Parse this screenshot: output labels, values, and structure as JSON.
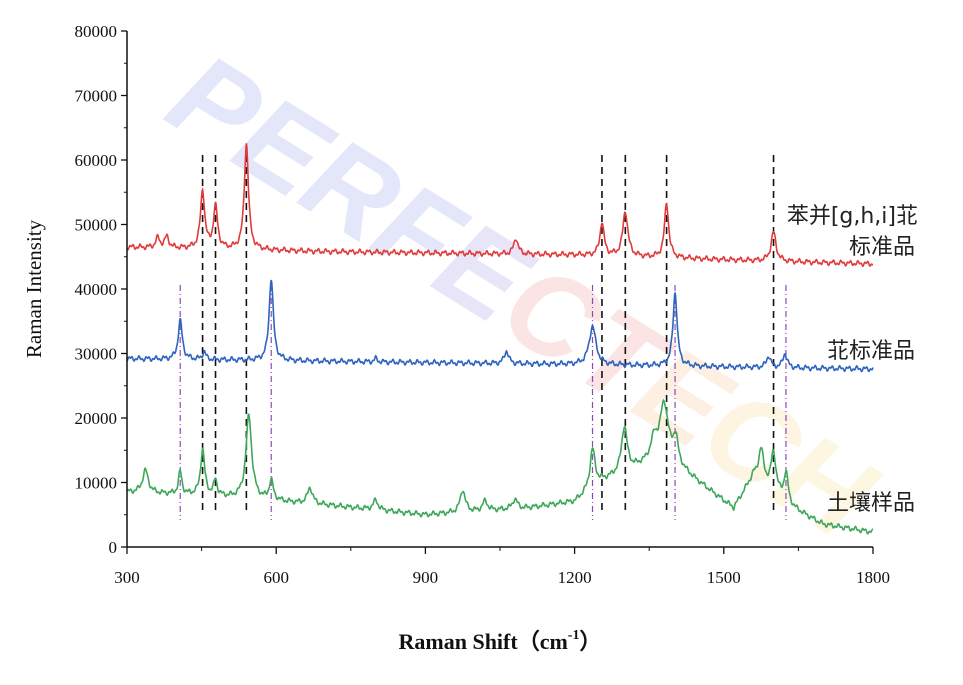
{
  "chart_data": {
    "type": "line",
    "xlabel": "Raman Shift（cm",
    "xlabel_sup": "-1",
    "xlabel_close": "）",
    "ylabel": "Raman Intensity",
    "xlim": [
      300,
      1800
    ],
    "ylim": [
      0,
      80000
    ],
    "x_ticks": [
      "300",
      "600",
      "900",
      "1200",
      "1500",
      "1800"
    ],
    "y_ticks": [
      "0",
      "10000",
      "20000",
      "30000",
      "40000",
      "50000",
      "60000",
      "70000",
      "80000"
    ],
    "grid": false,
    "legend": "inline labels at right end of each curve",
    "watermark": "PERFECTECH",
    "colors": {
      "red": "#e03c3c",
      "blue": "#2f64bf",
      "green": "#3ea75a",
      "black_ref": "#111111",
      "purple_ref": "#8a4bb8"
    },
    "series": [
      {
        "name": "苯并[g,h,i]苝",
        "name_line2": "标准品",
        "color": "#e03c3c",
        "baseline": [
          [
            300,
            46500
          ],
          [
            700,
            45800
          ],
          [
            1200,
            45300
          ],
          [
            1600,
            44300
          ],
          [
            1800,
            43900
          ]
        ],
        "peaks": [
          [
            362,
            1500,
            5
          ],
          [
            380,
            1700,
            5
          ],
          [
            452,
            9000,
            5
          ],
          [
            478,
            6500,
            5
          ],
          [
            540,
            16500,
            5
          ],
          [
            1082,
            2500,
            5
          ],
          [
            1255,
            5200,
            5
          ],
          [
            1302,
            7000,
            6
          ],
          [
            1385,
            8500,
            5
          ],
          [
            1600,
            4500,
            6
          ]
        ]
      },
      {
        "name": "苝标准品",
        "color": "#2f64bf",
        "baseline": [
          [
            300,
            29200
          ],
          [
            700,
            28800
          ],
          [
            1200,
            28300
          ],
          [
            1600,
            27800
          ],
          [
            1800,
            27600
          ]
        ],
        "peaks": [
          [
            407,
            6000,
            5
          ],
          [
            455,
            1200,
            4
          ],
          [
            590,
            12800,
            5
          ],
          [
            800,
            500,
            4
          ],
          [
            1063,
            2000,
            5
          ],
          [
            1236,
            6000,
            8
          ],
          [
            1402,
            11500,
            5
          ],
          [
            1590,
            1800,
            5
          ],
          [
            1623,
            2200,
            5
          ]
        ]
      },
      {
        "name": "土壤样品",
        "color": "#3ea75a",
        "baseline": [
          [
            300,
            8500
          ],
          [
            450,
            8000
          ],
          [
            700,
            6500
          ],
          [
            900,
            5000
          ],
          [
            1100,
            6000
          ],
          [
            1200,
            7000
          ],
          [
            1250,
            10000
          ],
          [
            1380,
            14000
          ],
          [
            1450,
            10000
          ],
          [
            1520,
            6000
          ],
          [
            1560,
            11000
          ],
          [
            1640,
            6000
          ],
          [
            1700,
            3500
          ],
          [
            1800,
            2300
          ]
        ],
        "peaks": [
          [
            337,
            3500,
            7
          ],
          [
            407,
            3500,
            4
          ],
          [
            452,
            7000,
            5
          ],
          [
            478,
            2500,
            4
          ],
          [
            545,
            13000,
            7
          ],
          [
            590,
            3000,
            5
          ],
          [
            668,
            2500,
            6
          ],
          [
            800,
            1500,
            6
          ],
          [
            975,
            3500,
            6
          ],
          [
            1020,
            1500,
            6
          ],
          [
            1080,
            1500,
            6
          ],
          [
            1236,
            6000,
            6
          ],
          [
            1300,
            7000,
            7
          ],
          [
            1360,
            3000,
            8
          ],
          [
            1380,
            8000,
            10
          ],
          [
            1403,
            4000,
            6
          ],
          [
            1575,
            5000,
            6
          ],
          [
            1600,
            6000,
            6
          ],
          [
            1625,
            4500,
            5
          ]
        ]
      }
    ],
    "reference_lines": {
      "black_dashed": [
        452,
        478,
        540,
        1255,
        1302,
        1385,
        1600
      ],
      "purple_dashdot": [
        407,
        590,
        1236,
        1402,
        1625
      ]
    }
  }
}
